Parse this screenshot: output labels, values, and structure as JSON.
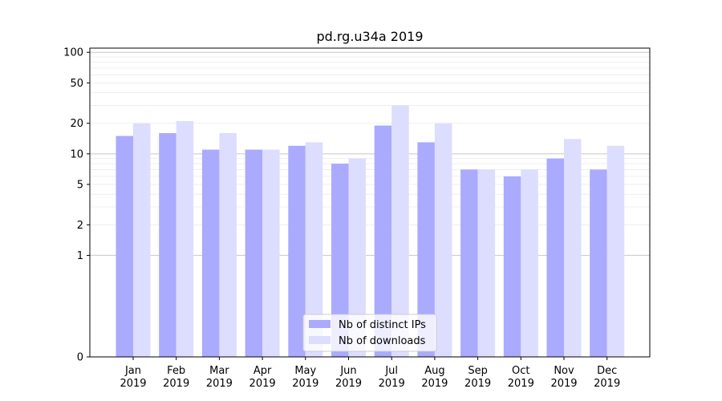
{
  "chart_data": {
    "type": "bar",
    "title": "pd.rg.u34a 2019",
    "xlabel": "",
    "ylabel": "",
    "yscale": "symlog",
    "ylim": [
      0,
      110
    ],
    "yticks": [
      0,
      1,
      2,
      5,
      10,
      20,
      50,
      100
    ],
    "grid": true,
    "legend_position": "bottom-center",
    "categories": [
      "Jan\n2019",
      "Feb\n2019",
      "Mar\n2019",
      "Apr\n2019",
      "May\n2019",
      "Jun\n2019",
      "Jul\n2019",
      "Aug\n2019",
      "Sep\n2019",
      "Oct\n2019",
      "Nov\n2019",
      "Dec\n2019"
    ],
    "series": [
      {
        "name": "Nb of distinct IPs",
        "color": "#aaaaff",
        "values": [
          15,
          16,
          11,
          11,
          12,
          8,
          19,
          13,
          7,
          6,
          9,
          7
        ]
      },
      {
        "name": "Nb of downloads",
        "color": "#ddddff",
        "values": [
          20,
          21,
          16,
          11,
          13,
          9,
          30,
          20,
          7,
          7,
          14,
          12
        ]
      }
    ]
  }
}
